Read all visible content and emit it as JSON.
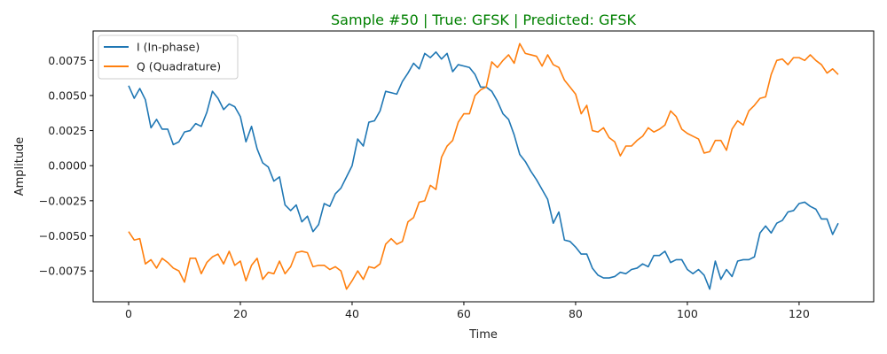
{
  "chart_data": {
    "type": "line",
    "title": "Sample #50 | True: GFSK | Predicted: GFSK",
    "title_color": "#008000",
    "xlabel": "Time",
    "ylabel": "Amplitude",
    "xlim": [
      -6.35,
      133.35
    ],
    "ylim": [
      -0.0097,
      0.0096
    ],
    "xticks": [
      0,
      20,
      40,
      60,
      80,
      100,
      120
    ],
    "xtick_labels": [
      "0",
      "20",
      "40",
      "60",
      "80",
      "100",
      "120"
    ],
    "yticks": [
      -0.0075,
      -0.005,
      -0.0025,
      0.0,
      0.0025,
      0.005,
      0.0075
    ],
    "ytick_labels": [
      "−0.0075",
      "−0.0050",
      "−0.0025",
      "0.0000",
      "0.0025",
      "0.0050",
      "0.0075"
    ],
    "grid": false,
    "legend_position": "upper left",
    "series": [
      {
        "name": "I (In-phase)",
        "color": "#1f77b4",
        "values": [
          0.0057,
          0.0048,
          0.0055,
          0.0047,
          0.0027,
          0.0033,
          0.0026,
          0.0026,
          0.0015,
          0.0017,
          0.0024,
          0.0025,
          0.003,
          0.0028,
          0.0038,
          0.0053,
          0.0048,
          0.004,
          0.0044,
          0.0042,
          0.0035,
          0.0017,
          0.0028,
          0.0012,
          0.0002,
          -0.0001,
          -0.0011,
          -0.0008,
          -0.0028,
          -0.0032,
          -0.0028,
          -0.004,
          -0.0036,
          -0.0047,
          -0.0042,
          -0.0027,
          -0.0029,
          -0.002,
          -0.0016,
          -0.0008,
          0.0,
          0.0019,
          0.0014,
          0.0031,
          0.0032,
          0.0039,
          0.0053,
          0.0052,
          0.0051,
          0.006,
          0.0066,
          0.0073,
          0.0069,
          0.008,
          0.0077,
          0.0081,
          0.0076,
          0.008,
          0.0067,
          0.0072,
          0.0071,
          0.007,
          0.0065,
          0.0056,
          0.0056,
          0.0053,
          0.0046,
          0.0037,
          0.0033,
          0.0022,
          0.0008,
          0.0003,
          -0.0004,
          -0.001,
          -0.0017,
          -0.0024,
          -0.0041,
          -0.0033,
          -0.0053,
          -0.0054,
          -0.0058,
          -0.0063,
          -0.0063,
          -0.0073,
          -0.0078,
          -0.008,
          -0.008,
          -0.0079,
          -0.0076,
          -0.0077,
          -0.0074,
          -0.0073,
          -0.007,
          -0.0072,
          -0.0064,
          -0.0064,
          -0.0061,
          -0.0069,
          -0.0067,
          -0.0067,
          -0.0074,
          -0.0077,
          -0.0074,
          -0.0078,
          -0.0088,
          -0.0068,
          -0.0081,
          -0.0074,
          -0.0079,
          -0.0068,
          -0.0067,
          -0.0067,
          -0.0065,
          -0.0048,
          -0.0043,
          -0.0048,
          -0.0041,
          -0.0039,
          -0.0033,
          -0.0032,
          -0.0027,
          -0.0026,
          -0.0029,
          -0.0031,
          -0.0038,
          -0.0038,
          -0.0049,
          -0.0041
        ]
      },
      {
        "name": "Q (Quadrature)",
        "color": "#ff7f0e",
        "values": [
          -0.0047,
          -0.0053,
          -0.0052,
          -0.007,
          -0.0067,
          -0.0073,
          -0.0066,
          -0.0069,
          -0.0073,
          -0.0075,
          -0.0083,
          -0.0066,
          -0.0066,
          -0.0077,
          -0.0069,
          -0.0065,
          -0.0063,
          -0.007,
          -0.0061,
          -0.0071,
          -0.0068,
          -0.0082,
          -0.0071,
          -0.0066,
          -0.0081,
          -0.0076,
          -0.0077,
          -0.0068,
          -0.0077,
          -0.0072,
          -0.0062,
          -0.0061,
          -0.0062,
          -0.0072,
          -0.0071,
          -0.0071,
          -0.0074,
          -0.0072,
          -0.0075,
          -0.0088,
          -0.0082,
          -0.0075,
          -0.0081,
          -0.0072,
          -0.0073,
          -0.007,
          -0.0056,
          -0.0052,
          -0.0056,
          -0.0054,
          -0.004,
          -0.0037,
          -0.0026,
          -0.0025,
          -0.0014,
          -0.0017,
          0.0006,
          0.0014,
          0.0018,
          0.0031,
          0.0037,
          0.0037,
          0.005,
          0.0054,
          0.0056,
          0.0074,
          0.007,
          0.0075,
          0.0079,
          0.0073,
          0.0087,
          0.008,
          0.0079,
          0.0078,
          0.0071,
          0.0079,
          0.0072,
          0.007,
          0.0061,
          0.0056,
          0.0051,
          0.0037,
          0.0043,
          0.0025,
          0.0024,
          0.0027,
          0.002,
          0.0017,
          0.0007,
          0.0014,
          0.0014,
          0.0018,
          0.0021,
          0.0027,
          0.0024,
          0.0026,
          0.0029,
          0.0039,
          0.0035,
          0.0026,
          0.0023,
          0.0021,
          0.0019,
          0.0009,
          0.001,
          0.0018,
          0.0018,
          0.0011,
          0.0026,
          0.0032,
          0.0029,
          0.0039,
          0.0043,
          0.0048,
          0.0049,
          0.0065,
          0.0075,
          0.0076,
          0.0072,
          0.0077,
          0.0077,
          0.0075,
          0.0079,
          0.0075,
          0.0072,
          0.0066,
          0.0069,
          0.0065
        ]
      }
    ]
  }
}
